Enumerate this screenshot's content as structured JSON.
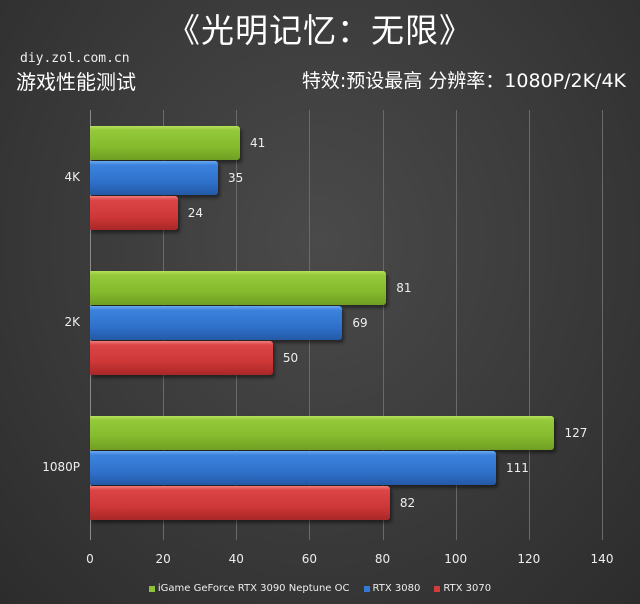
{
  "header": {
    "title": "《光明记忆：无限》",
    "site": "diy.zol.com.cn",
    "subtitle": "游戏性能测试",
    "settings": "特效:预设最高  分辨率：1080P/2K/4K"
  },
  "chart_data": {
    "type": "bar",
    "orientation": "horizontal",
    "title": "《光明记忆：无限》",
    "subtitle": "游戏性能测试 — 特效:预设最高 分辨率：1080P/2K/4K",
    "categories": [
      "4K",
      "2K",
      "1080P"
    ],
    "series": [
      {
        "name": "iGame GeForce RTX 3090 Neptune OC",
        "color": "#8cc234",
        "values": [
          41,
          81,
          127
        ]
      },
      {
        "name": "RTX 3080",
        "color": "#3479d4",
        "values": [
          35,
          69,
          111
        ]
      },
      {
        "name": "RTX 3070",
        "color": "#d43c3c",
        "values": [
          24,
          50,
          82
        ]
      }
    ],
    "xlabel": "",
    "ylabel": "",
    "xlim": [
      0,
      140
    ],
    "xticks": [
      0,
      20,
      40,
      60,
      80,
      100,
      120,
      140
    ],
    "grid": true,
    "legend_position": "bottom",
    "data_labels": true
  }
}
